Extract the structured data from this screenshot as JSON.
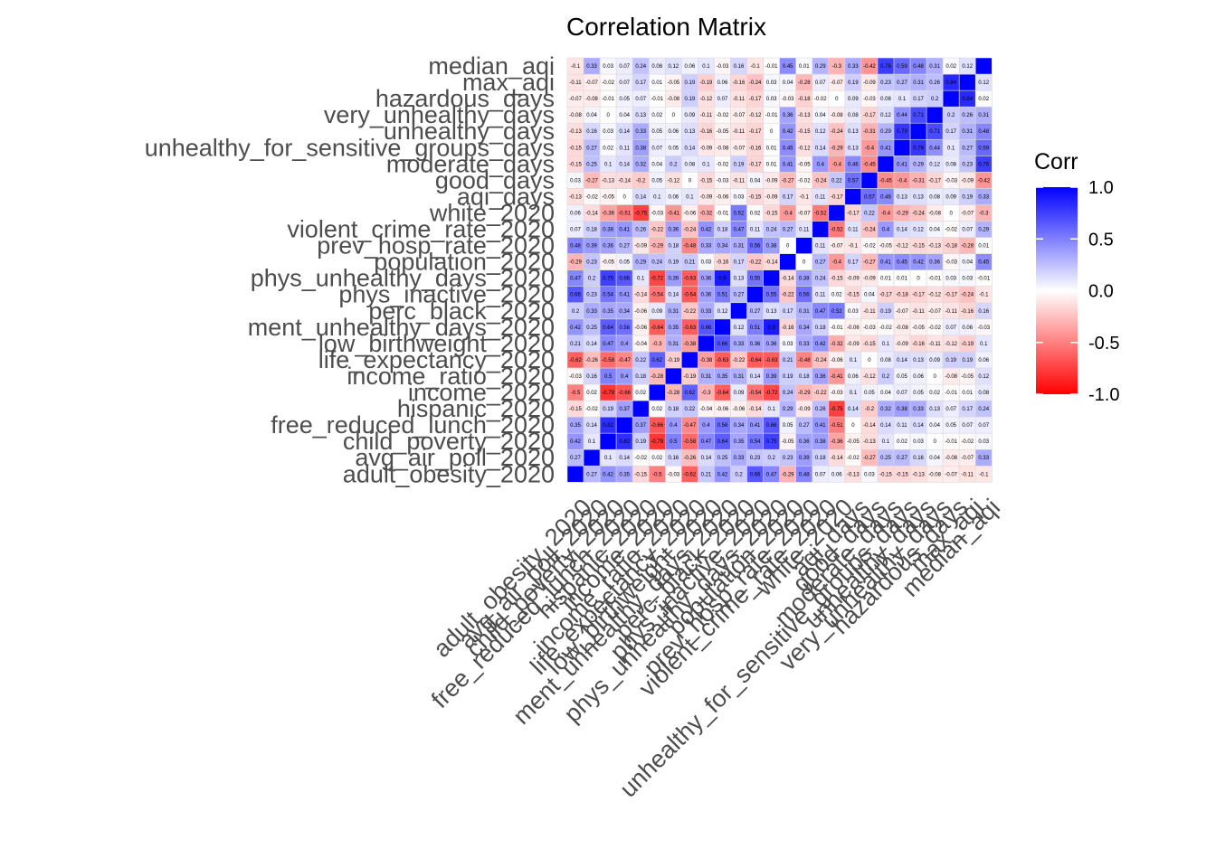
{
  "chart_data": {
    "type": "heatmap",
    "title": "Correlation Matrix",
    "variables": [
      "adult_obesity_2020",
      "avg_air_poll_2020",
      "child_poverty_2020",
      "free_reduced_lunch_2020",
      "hispanic_2020",
      "income_2020",
      "income_ratio_2020",
      "life_expectancy_2020",
      "low_birthweight_2020",
      "ment_unhealthy_days_2020",
      "perc_black_2020",
      "phys_inactive_2020",
      "phys_unhealthy_days_2020",
      "population_2020",
      "prev_hosp_rate_2020",
      "violent_crime_rate_2020",
      "white_2020",
      "aqi_days",
      "good_days",
      "moderate_days",
      "unhealthy_for_sensitive_groups_days",
      "unhealthy_days",
      "very_unhealthy_days",
      "hazardous_days",
      "max_aqi",
      "median_aqi"
    ],
    "matrix": [
      [
        "1",
        "0.27",
        "0.42",
        "0.35",
        "-0.15",
        "-0.5",
        "-0.03",
        "-0.62",
        "0.21",
        "0.42",
        "0.2",
        "0.66",
        "0.47",
        "-0.29",
        "0.48",
        "0.07",
        "0.06",
        "-0.13",
        "0.03",
        "-0.15",
        "-0.15",
        "-0.13",
        "-0.08",
        "-0.07",
        "-0.11",
        "-0.1"
      ],
      [
        "0.27",
        "1",
        "0.1",
        "0.14",
        "-0.02",
        "0.02",
        "0.16",
        "-0.26",
        "0.14",
        "0.25",
        "0.33",
        "0.23",
        "0.2",
        "0.23",
        "0.39",
        "0.18",
        "-0.14",
        "-0.02",
        "-0.27",
        "0.25",
        "0.27",
        "0.16",
        "0.04",
        "-0.08",
        "-0.07",
        "0.33"
      ],
      [
        "0.42",
        "0.1",
        "1",
        "0.82",
        "0.19",
        "-0.79",
        "0.5",
        "-0.58",
        "0.47",
        "0.64",
        "0.35",
        "0.54",
        "0.75",
        "-0.05",
        "0.36",
        "0.38",
        "-0.36",
        "-0.05",
        "-0.13",
        "0.1",
        "0.02",
        "0.03",
        "0",
        "-0.01",
        "-0.02",
        "0.03"
      ],
      [
        "0.35",
        "0.14",
        "0.82",
        "1",
        "0.37",
        "-0.66",
        "0.4",
        "-0.47",
        "0.4",
        "0.56",
        "0.34",
        "0.41",
        "0.66",
        "0.05",
        "0.27",
        "0.41",
        "-0.51",
        "0",
        "-0.14",
        "0.14",
        "0.11",
        "0.14",
        "0.04",
        "0.05",
        "0.07",
        "0.07"
      ],
      [
        "-0.15",
        "-0.02",
        "0.19",
        "0.37",
        "1",
        "0.02",
        "0.18",
        "0.22",
        "-0.04",
        "-0.06",
        "-0.06",
        "-0.14",
        "0.1",
        "0.29",
        "-0.09",
        "0.26",
        "-0.75",
        "0.14",
        "-0.2",
        "0.32",
        "0.38",
        "0.33",
        "0.13",
        "0.07",
        "0.17",
        "0.24"
      ],
      [
        "-0.5",
        "0.02",
        "-0.79",
        "-0.66",
        "0.02",
        "1",
        "-0.28",
        "0.62",
        "-0.3",
        "-0.64",
        "0.09",
        "-0.54",
        "-0.72",
        "0.24",
        "-0.29",
        "-0.22",
        "-0.03",
        "0.1",
        "0.05",
        "0.04",
        "0.07",
        "0.05",
        "0.02",
        "-0.01",
        "0.01",
        "0.08"
      ],
      [
        "-0.03",
        "0.16",
        "0.5",
        "0.4",
        "0.18",
        "-0.28",
        "1",
        "-0.19",
        "0.31",
        "0.35",
        "0.31",
        "0.14",
        "0.39",
        "0.19",
        "0.18",
        "0.36",
        "-0.41",
        "0.06",
        "-0.12",
        "0.2",
        "0.05",
        "0.06",
        "0",
        "-0.08",
        "-0.05",
        "0.12"
      ],
      [
        "-0.62",
        "-0.26",
        "-0.58",
        "-0.47",
        "0.22",
        "0.62",
        "-0.19",
        "1",
        "-0.38",
        "-0.63",
        "-0.22",
        "-0.64",
        "-0.63",
        "0.21",
        "-0.48",
        "-0.24",
        "-0.06",
        "0.1",
        "0",
        "0.08",
        "0.14",
        "0.13",
        "0.09",
        "0.19",
        "0.19",
        "0.06"
      ],
      [
        "0.21",
        "0.14",
        "0.47",
        "0.4",
        "-0.04",
        "-0.3",
        "0.31",
        "-0.38",
        "1",
        "0.66",
        "0.33",
        "0.36",
        "0.36",
        "0.03",
        "0.33",
        "0.42",
        "-0.32",
        "-0.09",
        "-0.15",
        "0.1",
        "-0.09",
        "-0.16",
        "-0.11",
        "-0.12",
        "-0.19",
        "0.1"
      ],
      [
        "0.42",
        "0.25",
        "0.64",
        "0.56",
        "-0.06",
        "-0.64",
        "0.35",
        "-0.63",
        "0.66",
        "1",
        "0.12",
        "0.51",
        "0.9",
        "-0.16",
        "0.34",
        "0.18",
        "-0.01",
        "-0.06",
        "-0.03",
        "-0.02",
        "-0.08",
        "-0.05",
        "-0.02",
        "0.07",
        "0.06",
        "-0.03"
      ],
      [
        "0.2",
        "0.33",
        "0.35",
        "0.34",
        "-0.06",
        "0.09",
        "0.31",
        "-0.22",
        "0.33",
        "0.12",
        "1",
        "0.27",
        "0.13",
        "0.17",
        "0.31",
        "0.47",
        "0.52",
        "0.03",
        "-0.11",
        "0.19",
        "-0.07",
        "-0.11",
        "-0.07",
        "-0.11",
        "-0.16",
        "0.16"
      ],
      [
        "0.66",
        "0.23",
        "0.54",
        "0.41",
        "-0.14",
        "-0.54",
        "0.14",
        "-0.64",
        "0.36",
        "0.51",
        "0.27",
        "1",
        "0.55",
        "-0.22",
        "0.56",
        "0.11",
        "0.02",
        "-0.15",
        "0.04",
        "-0.17",
        "-0.16",
        "-0.17",
        "-0.12",
        "-0.17",
        "-0.24",
        "-0.1"
      ],
      [
        "0.47",
        "0.2",
        "0.75",
        "0.66",
        "0.1",
        "-0.72",
        "0.39",
        "-0.63",
        "0.36",
        "0.9",
        "0.13",
        "0.55",
        "1",
        "-0.14",
        "0.38",
        "0.24",
        "-0.15",
        "-0.09",
        "-0.09",
        "0.01",
        "0.01",
        "0",
        "-0.01",
        "0.03",
        "0.03",
        "-0.01"
      ],
      [
        "-0.29",
        "0.23",
        "-0.05",
        "0.05",
        "0.29",
        "0.24",
        "0.19",
        "0.21",
        "0.03",
        "-0.16",
        "0.17",
        "-0.22",
        "-0.14",
        "1",
        "0",
        "0.27",
        "-0.4",
        "0.17",
        "-0.27",
        "0.41",
        "0.45",
        "0.42",
        "0.36",
        "-0.03",
        "0.04",
        "0.45"
      ],
      [
        "0.48",
        "0.39",
        "0.36",
        "0.27",
        "-0.09",
        "-0.29",
        "0.18",
        "-0.48",
        "0.33",
        "0.34",
        "0.31",
        "0.56",
        "0.38",
        "0",
        "1",
        "0.11",
        "-0.07",
        "-0.1",
        "-0.02",
        "-0.05",
        "-0.12",
        "-0.15",
        "-0.13",
        "-0.18",
        "-0.28",
        "0.01"
      ],
      [
        "0.07",
        "0.18",
        "0.38",
        "0.41",
        "0.26",
        "-0.22",
        "0.36",
        "-0.24",
        "0.42",
        "0.18",
        "0.47",
        "0.11",
        "0.24",
        "0.27",
        "0.11",
        "1",
        "-0.52",
        "0.11",
        "-0.24",
        "0.4",
        "0.14",
        "0.12",
        "0.04",
        "-0.02",
        "0.07",
        "0.29"
      ],
      [
        "0.06",
        "-0.14",
        "-0.36",
        "-0.51",
        "-0.75",
        "-0.03",
        "-0.41",
        "-0.06",
        "-0.32",
        "-0.01",
        "0.52",
        "0.02",
        "-0.15",
        "-0.4",
        "-0.07",
        "-0.52",
        "1",
        "-0.17",
        "0.22",
        "-0.4",
        "-0.29",
        "-0.24",
        "-0.08",
        "0",
        "-0.07",
        "-0.3"
      ],
      [
        "-0.13",
        "-0.02",
        "-0.05",
        "0",
        "0.14",
        "0.1",
        "0.06",
        "0.1",
        "-0.09",
        "-0.06",
        "0.03",
        "-0.15",
        "-0.09",
        "0.17",
        "-0.1",
        "0.11",
        "-0.17",
        "1",
        "0.57",
        "0.46",
        "0.13",
        "0.13",
        "0.08",
        "0.09",
        "0.19",
        "0.33"
      ],
      [
        "0.03",
        "-0.27",
        "-0.13",
        "-0.14",
        "-0.2",
        "0.05",
        "-0.12",
        "0",
        "-0.15",
        "-0.03",
        "-0.11",
        "0.04",
        "-0.09",
        "-0.27",
        "-0.02",
        "-0.24",
        "0.22",
        "0.57",
        "1",
        "-0.45",
        "-0.4",
        "-0.31",
        "-0.17",
        "-0.03",
        "-0.09",
        "-0.42"
      ],
      [
        "-0.15",
        "0.25",
        "0.1",
        "0.14",
        "0.32",
        "0.04",
        "0.2",
        "0.08",
        "0.1",
        "-0.02",
        "0.19",
        "-0.17",
        "0.01",
        "0.41",
        "-0.05",
        "0.4",
        "-0.4",
        "0.46",
        "-0.45",
        "1",
        "0.41",
        "0.29",
        "0.12",
        "0.08",
        "0.23",
        "0.76"
      ],
      [
        "-0.15",
        "0.27",
        "0.02",
        "0.11",
        "0.38",
        "0.07",
        "0.05",
        "0.14",
        "-0.09",
        "-0.08",
        "-0.07",
        "-0.18",
        "0.01",
        "0.45",
        "-0.12",
        "0.14",
        "-0.29",
        "0.13",
        "-0.4",
        "0.41",
        "1",
        "0.79",
        "0.44",
        "0.1",
        "0.27",
        "0.59"
      ],
      [
        "-0.13",
        "0.16",
        "0.03",
        "0.14",
        "0.33",
        "0.05",
        "0.06",
        "0.13",
        "-0.16",
        "-0.05",
        "-0.11",
        "-0.17",
        "0",
        "0.42",
        "-0.15",
        "0.12",
        "-0.24",
        "0.13",
        "-0.31",
        "0.29",
        "0.79",
        "1",
        "0.71",
        "0.17",
        "0.31",
        "0.48"
      ],
      [
        "-0.08",
        "0.04",
        "0",
        "0.04",
        "0.13",
        "0.02",
        "0",
        "0.09",
        "-0.11",
        "-0.02",
        "-0.07",
        "-0.12",
        "-0.01",
        "0.36",
        "-0.13",
        "0.04",
        "-0.08",
        "0.08",
        "-0.17",
        "0.12",
        "0.44",
        "0.71",
        "1",
        "0.2",
        "0.26",
        "0.31"
      ],
      [
        "-0.07",
        "-0.08",
        "-0.01",
        "0.05",
        "0.07",
        "-0.01",
        "-0.08",
        "0.19",
        "-0.12",
        "0.07",
        "-0.11",
        "-0.17",
        "0.03",
        "-0.03",
        "-0.18",
        "-0.02",
        "0",
        "0.09",
        "-0.03",
        "0.08",
        "0.1",
        "0.17",
        "0.2",
        "1",
        "0.84",
        "0.02"
      ],
      [
        "-0.11",
        "-0.07",
        "-0.02",
        "0.07",
        "0.17",
        "0.01",
        "-0.05",
        "0.19",
        "-0.19",
        "0.06",
        "-0.16",
        "-0.24",
        "0.03",
        "0.04",
        "-0.28",
        "0.07",
        "-0.07",
        "0.19",
        "-0.09",
        "0.23",
        "0.27",
        "0.31",
        "0.26",
        "0.84",
        "1",
        "0.12"
      ],
      [
        "-0.1",
        "0.33",
        "0.03",
        "0.07",
        "0.24",
        "0.08",
        "0.12",
        "0.06",
        "0.1",
        "-0.03",
        "0.16",
        "-0.1",
        "-0.01",
        "0.45",
        "0.01",
        "0.29",
        "-0.3",
        "0.33",
        "-0.42",
        "0.76",
        "0.59",
        "0.48",
        "0.31",
        "0.02",
        "0.12",
        "1"
      ]
    ],
    "legend": {
      "title": "Corr",
      "ticks": [
        "1.0",
        "0.5",
        "0.0",
        "-0.5",
        "-1.0"
      ],
      "tick_values": [
        1,
        0.5,
        0,
        -0.5,
        -1
      ],
      "range": [
        -1,
        1
      ],
      "placement": "right"
    },
    "colors": {
      "high": "#0000ff",
      "mid": "#ffffff",
      "low": "#ff0000",
      "grid": "#d9d9d9"
    },
    "grid": false
  }
}
